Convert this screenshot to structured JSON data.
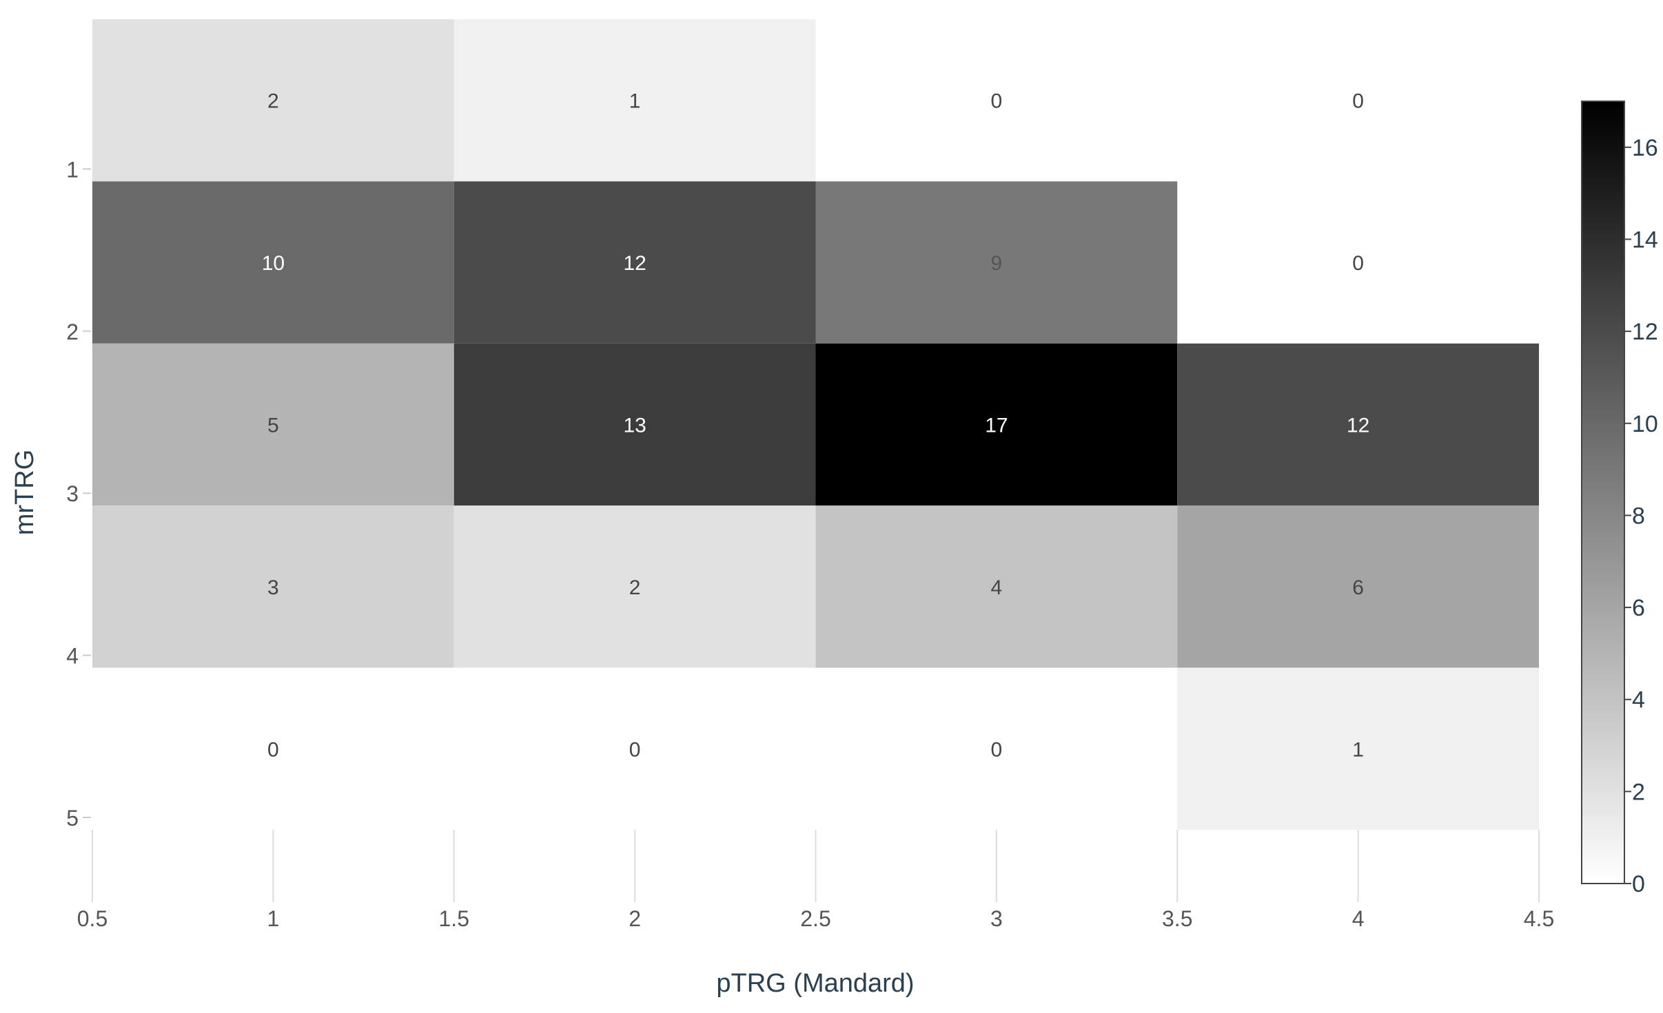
{
  "chart_data": {
    "type": "heatmap",
    "title": "",
    "xlabel": "pTRG (Mandard)",
    "ylabel": "mrTRG",
    "x_categories": [
      1,
      2,
      3,
      4
    ],
    "y_categories": [
      1,
      2,
      3,
      4,
      5
    ],
    "values": [
      [
        2,
        1,
        0,
        0
      ],
      [
        10,
        12,
        9,
        0
      ],
      [
        5,
        13,
        17,
        12
      ],
      [
        3,
        2,
        4,
        6
      ],
      [
        0,
        0,
        0,
        1
      ]
    ],
    "xlim": [
      0.5,
      4.5
    ],
    "ylim": [
      0.5,
      5.5
    ],
    "x_ticks": [
      "0.5",
      "1",
      "1.5",
      "2",
      "2.5",
      "3",
      "3.5",
      "4",
      "4.5"
    ],
    "y_ticks": [
      "1",
      "2",
      "3",
      "4",
      "5"
    ],
    "colorbar": {
      "range": [
        0,
        17
      ],
      "ticks": [
        "0",
        "2",
        "4",
        "6",
        "8",
        "10",
        "12",
        "14",
        "16"
      ],
      "colormap": "white-to-black"
    },
    "grid": true
  }
}
